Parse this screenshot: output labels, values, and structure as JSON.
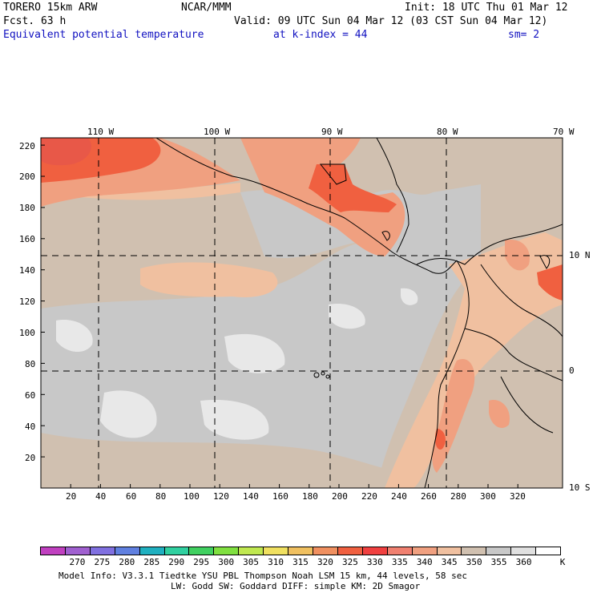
{
  "header": {
    "model": "TORERO  15km ARW",
    "org": "NCAR/MMM",
    "init": "Init: 18 UTC Thu 01 Mar 12",
    "fcst": "Fcst.   63 h",
    "valid": "Valid: 09 UTC Sun 04 Mar 12 (03 CST Sun 04 Mar 12)",
    "field": "Equivalent potential temperature",
    "level": "at k-index =  44",
    "smooth": "sm= 2"
  },
  "map": {
    "top_lon_labels": [
      "110 W",
      "100 W",
      "90 W",
      "80 W",
      "70 W"
    ],
    "right_lat_labels": [
      "10 N",
      "0",
      "10 S"
    ],
    "y_ticks": [
      "220",
      "200",
      "180",
      "160",
      "140",
      "120",
      "100",
      "80",
      "60",
      "40",
      "20"
    ],
    "x_ticks": [
      "20",
      "40",
      "60",
      "80",
      "100",
      "120",
      "140",
      "160",
      "180",
      "200",
      "220",
      "240",
      "260",
      "280",
      "300",
      "320"
    ]
  },
  "colorbar": {
    "labels": [
      "270",
      "275",
      "280",
      "285",
      "290",
      "295",
      "300",
      "305",
      "310",
      "315",
      "320",
      "325",
      "330",
      "335",
      "340",
      "345",
      "350",
      "355",
      "360"
    ],
    "unit": "K",
    "colors": [
      "#c040c0",
      "#a060d0",
      "#8070e0",
      "#6080e0",
      "#20b0c0",
      "#30d0a0",
      "#40d060",
      "#80e040",
      "#c0e850",
      "#f0e060",
      "#f0c060",
      "#f09060",
      "#f06040",
      "#f04040",
      "#f08070",
      "#f0a080",
      "#f0c0a0",
      "#d0c0b0",
      "#c8c8c8",
      "#e0e0e0",
      "#ffffff"
    ]
  },
  "footer": {
    "line1": "Model Info: V3.3.1    Tiedtke YSU PBL  Thompson     Noah LSM  15 km,   44 levels,   58 sec",
    "line2": "LW: Godd SW: Goddard DIFF: simple KM: 2D Smagor"
  }
}
